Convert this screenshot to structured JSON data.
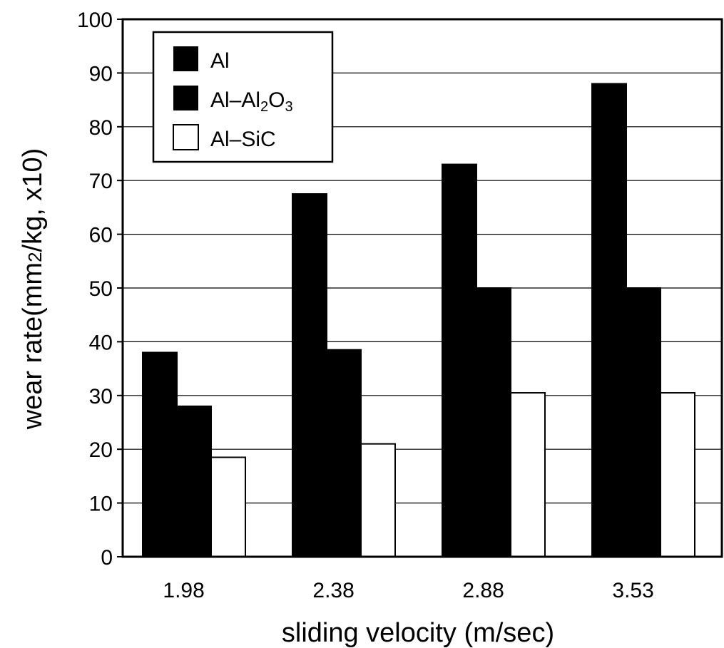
{
  "chart_data": {
    "type": "bar",
    "categories": [
      "1.98",
      "2.38",
      "2.88",
      "3.53"
    ],
    "series": [
      {
        "name": "Al",
        "values": [
          38,
          67.5,
          73,
          88
        ],
        "fill": "#000000"
      },
      {
        "name": "Al-Al2O3",
        "values": [
          28,
          38.5,
          50,
          50
        ],
        "fill": "#000000"
      },
      {
        "name": "Al-SiC",
        "values": [
          18.5,
          21,
          30.5,
          30.5
        ],
        "fill": "#ffffff"
      }
    ],
    "xlabel": "sliding velocity (m/sec)",
    "ylabel": "wear rate(mm2/kg, x10)",
    "ylim": [
      0,
      100
    ],
    "yticks": [
      "0",
      "10",
      "20",
      "30",
      "40",
      "50",
      "60",
      "70",
      "80",
      "90",
      "100"
    ],
    "grid": true,
    "legend_position": "top-left",
    "legend_labels": {
      "al": "Al",
      "al_al2o3_prefix": "Al–Al",
      "al_al2o3_sub1": "2",
      "al_al2o3_mid": "O",
      "al_al2o3_sub2": "3",
      "al_sic": "Al–SiC"
    },
    "ylabel_parts": {
      "before": "wear rate(mm",
      "sub": "2",
      "after": "/kg, x10)"
    }
  }
}
